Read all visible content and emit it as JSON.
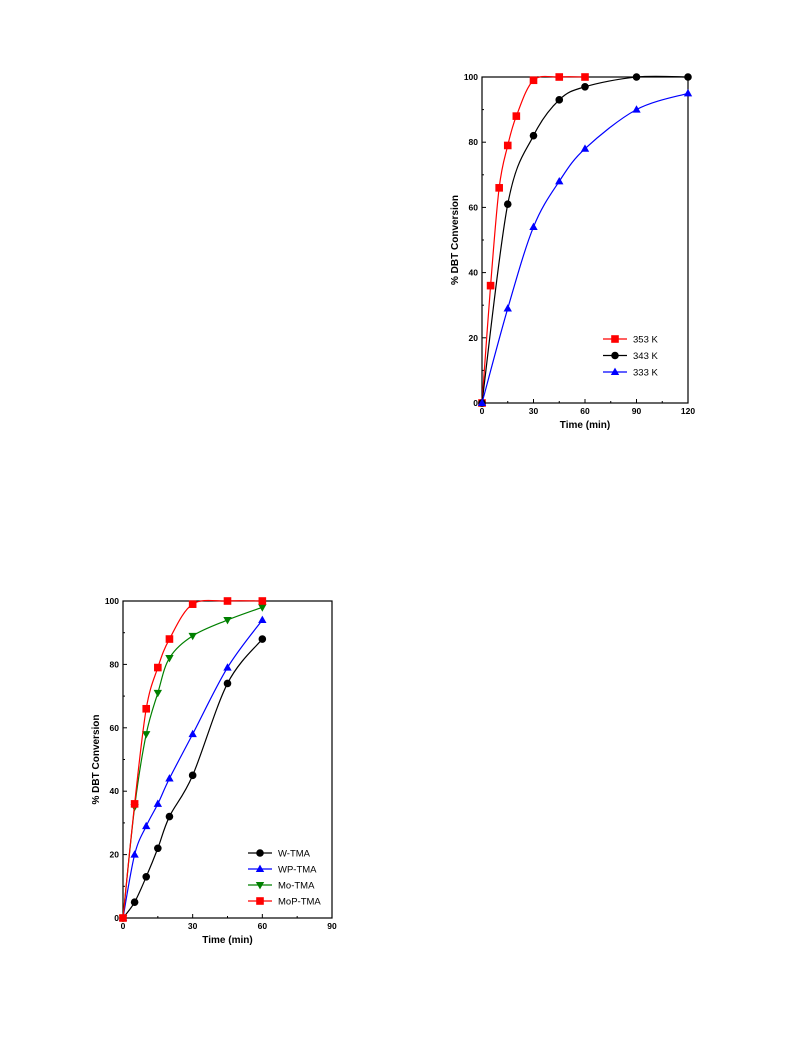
{
  "chart_data": [
    {
      "type": "line",
      "title": "",
      "xlabel": "Time (min)",
      "ylabel": "% DBT Conversion",
      "xlim": [
        0,
        120
      ],
      "ylim": [
        0,
        100
      ],
      "xticks": [
        "0",
        "30",
        "60",
        "90",
        "120"
      ],
      "yticks": [
        "0",
        "20",
        "40",
        "60",
        "80",
        "100"
      ],
      "legend_position": "bottom-right",
      "grid": false,
      "series": [
        {
          "name": "353 K",
          "color": "#ff0000",
          "marker": "square",
          "x": [
            0,
            5,
            10,
            15,
            20,
            30,
            45,
            60
          ],
          "y": [
            0,
            36,
            66,
            79,
            88,
            99,
            100,
            100
          ]
        },
        {
          "name": "343 K",
          "color": "#000000",
          "marker": "circle",
          "x": [
            0,
            15,
            30,
            45,
            60,
            90,
            120
          ],
          "y": [
            0,
            61,
            82,
            93,
            97,
            100,
            100
          ]
        },
        {
          "name": "333 K",
          "color": "#0000ff",
          "marker": "triangle-up",
          "x": [
            0,
            15,
            30,
            45,
            60,
            90,
            120
          ],
          "y": [
            0,
            29,
            54,
            68,
            78,
            90,
            95
          ]
        }
      ]
    },
    {
      "type": "line",
      "title": "",
      "xlabel": "Time (min)",
      "ylabel": "% DBT Conversion",
      "xlim": [
        0,
        90
      ],
      "ylim": [
        0,
        100
      ],
      "xticks": [
        "0",
        "30",
        "60",
        "90"
      ],
      "yticks": [
        "0",
        "20",
        "40",
        "60",
        "80",
        "100"
      ],
      "legend_position": "bottom-right",
      "grid": false,
      "series": [
        {
          "name": "W-TMA",
          "color": "#000000",
          "marker": "circle",
          "x": [
            0,
            5,
            10,
            15,
            20,
            30,
            45,
            60
          ],
          "y": [
            0,
            5,
            13,
            22,
            32,
            45,
            74,
            88
          ]
        },
        {
          "name": "WP-TMA",
          "color": "#0000ff",
          "marker": "triangle-up",
          "x": [
            0,
            5,
            10,
            15,
            20,
            30,
            45,
            60
          ],
          "y": [
            0,
            20,
            29,
            36,
            44,
            58,
            79,
            94
          ]
        },
        {
          "name": "Mo-TMA",
          "color": "#008000",
          "marker": "triangle-down",
          "x": [
            0,
            5,
            10,
            15,
            20,
            30,
            45,
            60
          ],
          "y": [
            0,
            35,
            58,
            71,
            82,
            89,
            94,
            98
          ]
        },
        {
          "name": "MoP-TMA",
          "color": "#ff0000",
          "marker": "square",
          "x": [
            0,
            5,
            10,
            15,
            20,
            30,
            45,
            60
          ],
          "y": [
            0,
            36,
            66,
            79,
            88,
            99,
            100,
            100
          ]
        }
      ]
    }
  ]
}
